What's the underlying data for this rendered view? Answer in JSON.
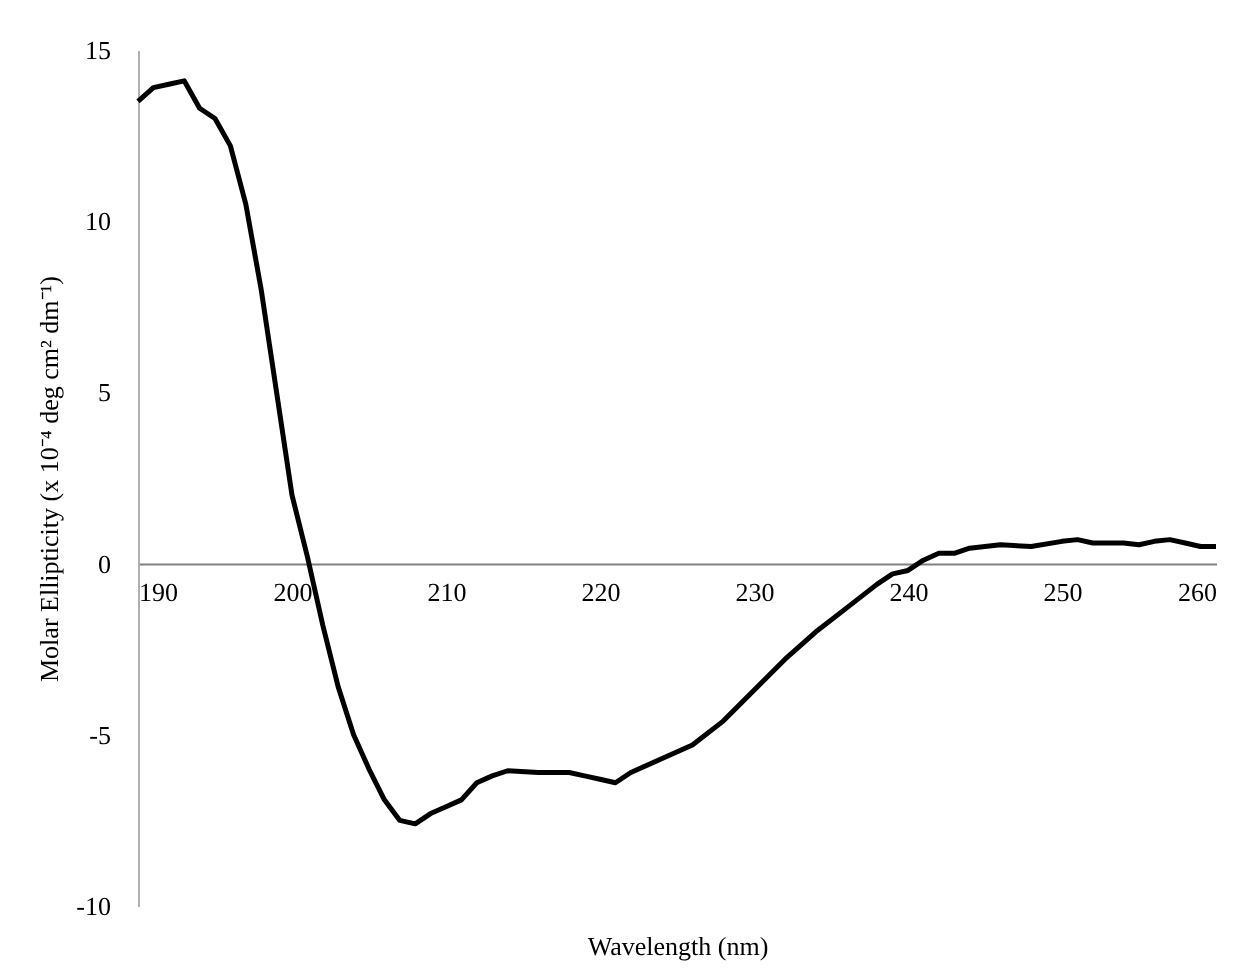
{
  "chart_data": {
    "type": "line",
    "xlabel": "Wavelength (nm)",
    "ylabel": "Molar Ellipticity (x 10⁻⁴ deg cm² dm⁻¹)",
    "x": [
      190,
      191,
      192,
      193,
      194,
      195,
      196,
      197,
      198,
      199,
      200,
      201,
      202,
      203,
      204,
      205,
      206,
      207,
      208,
      209,
      210,
      211,
      212,
      213,
      214,
      216,
      218,
      219,
      220,
      221,
      222,
      224,
      226,
      228,
      230,
      232,
      234,
      236,
      238,
      239,
      240,
      241,
      242,
      243,
      244,
      246,
      248,
      250,
      251,
      252,
      254,
      255,
      256,
      257,
      258,
      259,
      260
    ],
    "series": [
      {
        "color": "#000000",
        "values": [
          13.5,
          13.9,
          14.0,
          14.1,
          13.3,
          13.0,
          12.2,
          10.5,
          8,
          5,
          2,
          0.2,
          -1.8,
          -3.6,
          -5,
          -6,
          -6.9,
          -7.5,
          -7.6,
          -7.3,
          -7.1,
          -6.9,
          -6.4,
          -6.2,
          -6.05,
          -6.1,
          -6.1,
          -6.2,
          -6.3,
          -6.4,
          -6.1,
          -5.7,
          -5.3,
          -4.6,
          -3.7,
          -2.8,
          -2.0,
          -1.3,
          -0.6,
          -0.3,
          -0.2,
          0.1,
          0.3,
          0.3,
          0.45,
          0.55,
          0.5,
          0.65,
          0.7,
          0.6,
          0.6,
          0.55,
          0.65,
          0.7,
          0.6,
          0.5,
          0.5
        ]
      }
    ],
    "xlim": [
      190,
      260
    ],
    "xticks": [
      190,
      200,
      210,
      220,
      230,
      240,
      250,
      260
    ],
    "ylim": [
      -10,
      15
    ],
    "yticks": [
      -10,
      -5,
      0,
      5,
      10,
      15
    ],
    "grid": false,
    "marker": "none",
    "line_style": "solid"
  }
}
